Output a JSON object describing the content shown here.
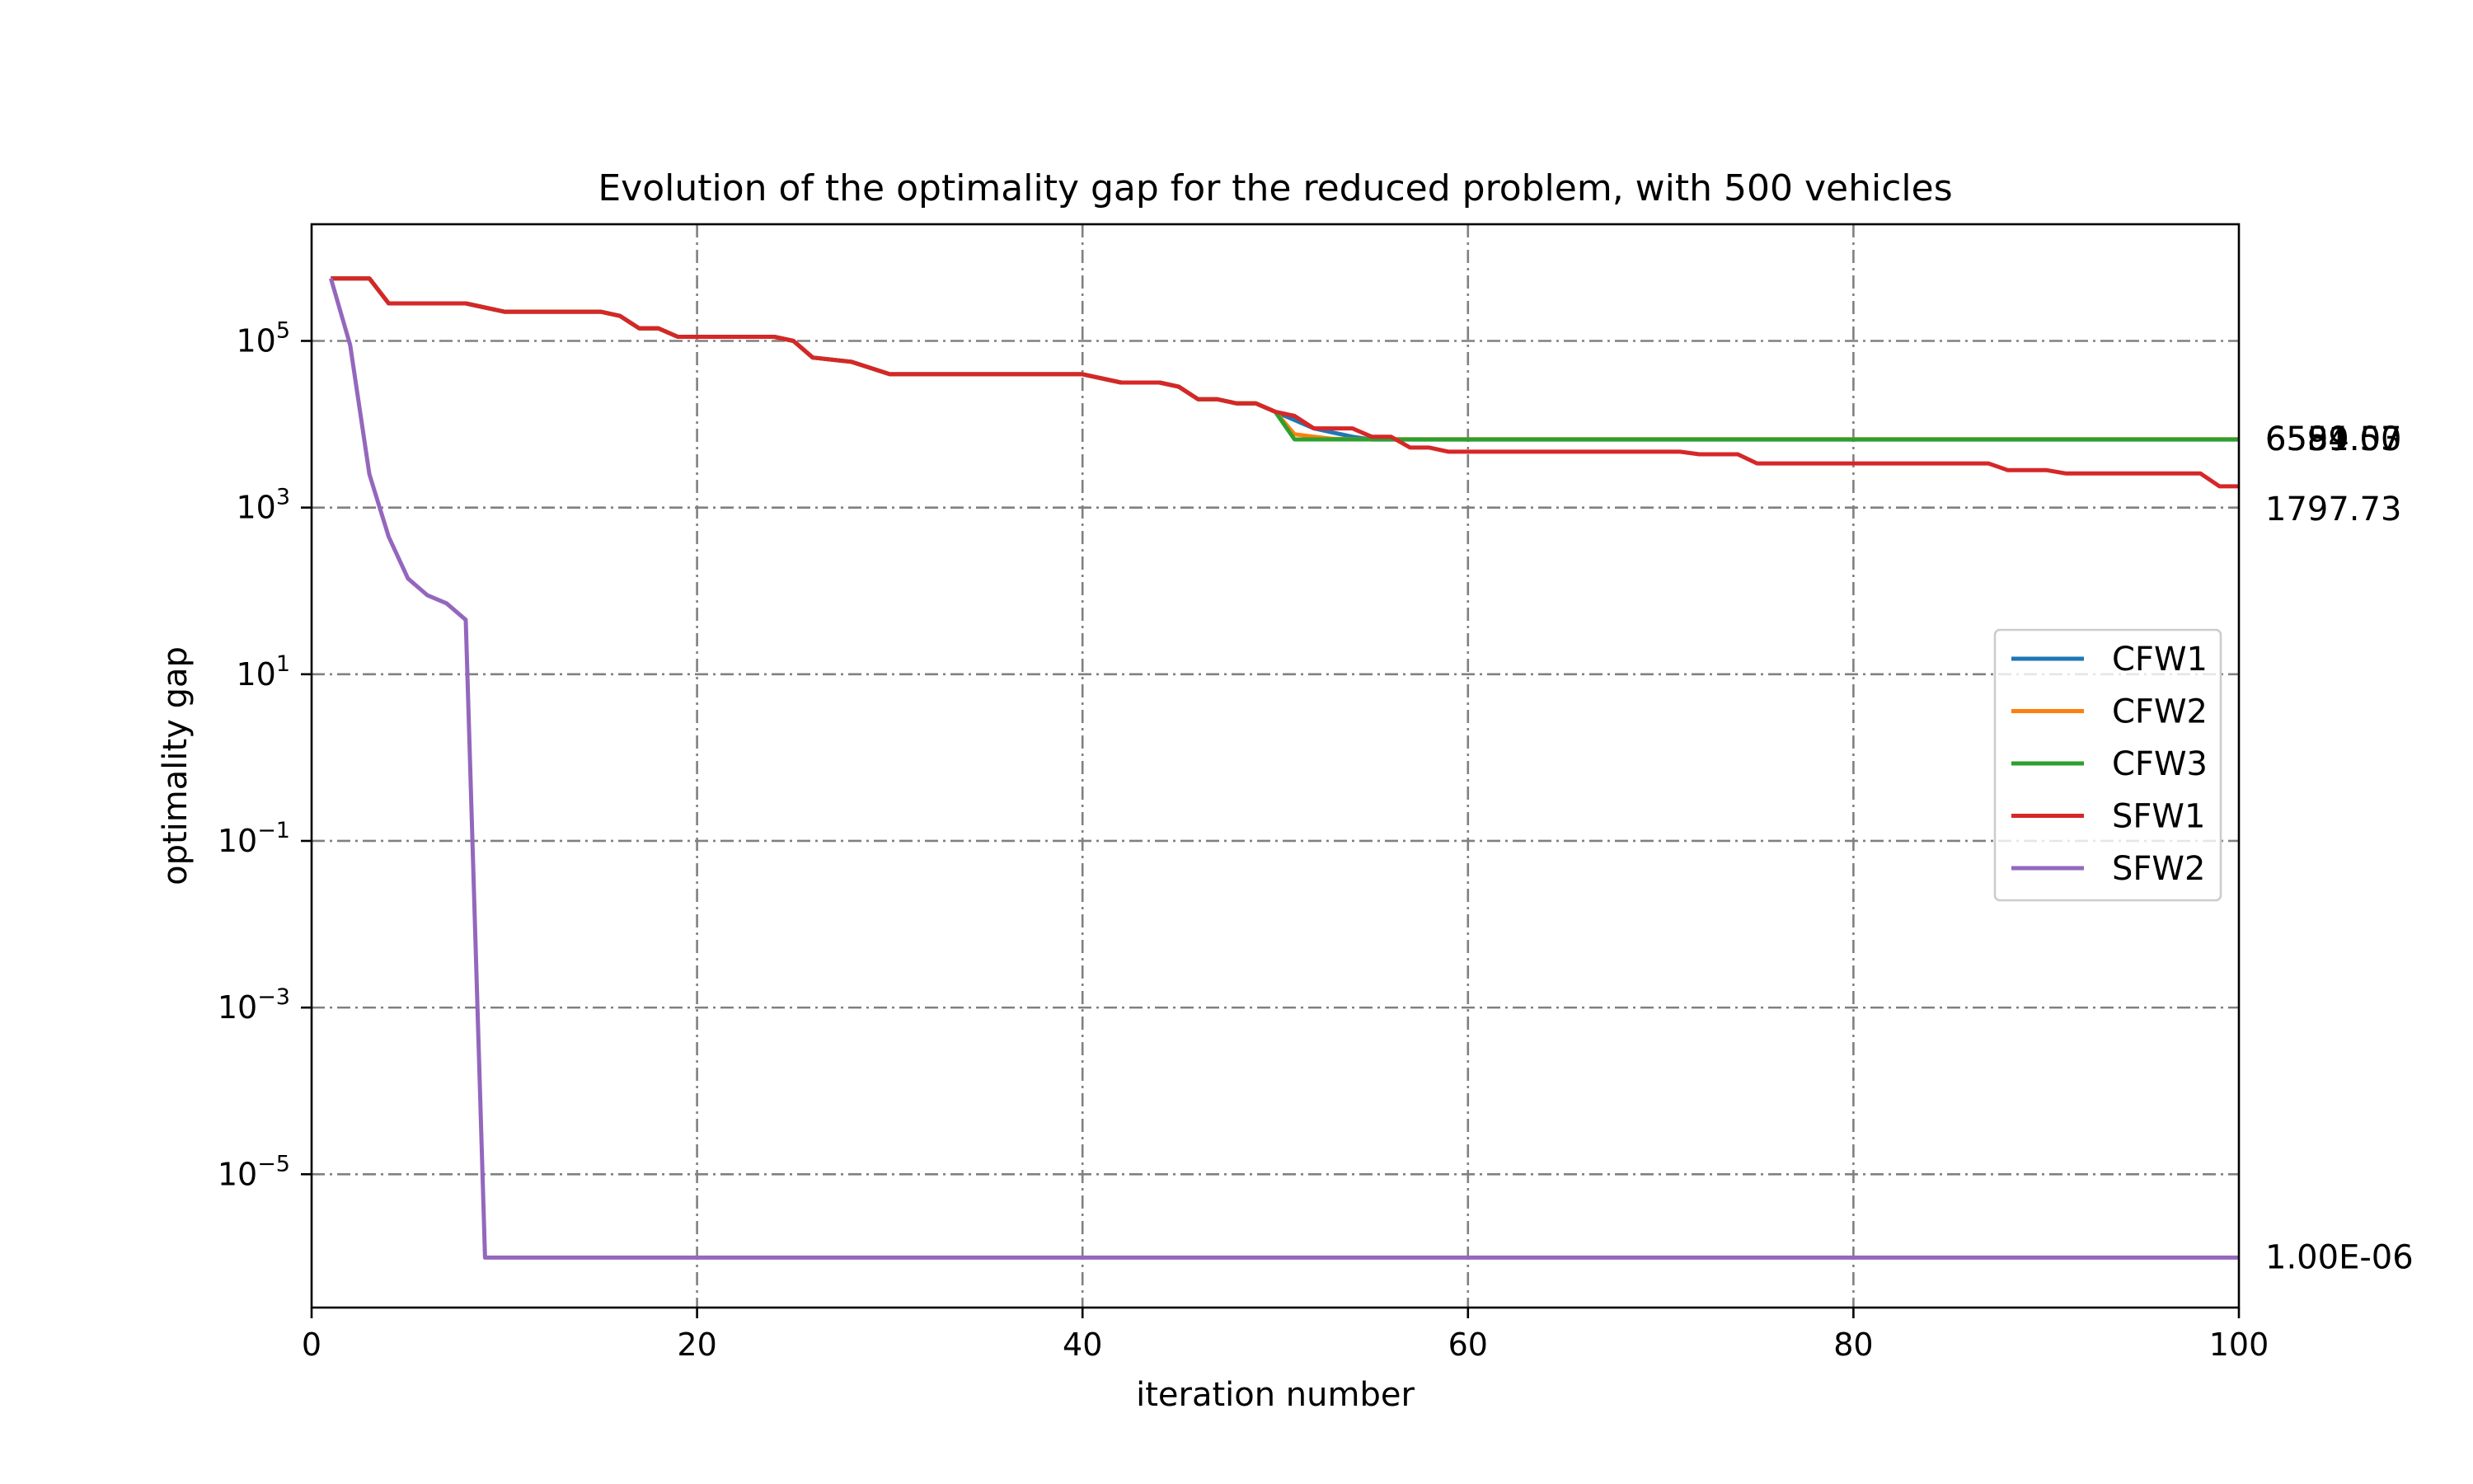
{
  "chart_data": {
    "type": "line",
    "title": "Evolution of the optimality gap for the reduced problem, with 500 vehicles",
    "xlabel": "iteration number",
    "ylabel": "optimality gap",
    "xlim": [
      0,
      100
    ],
    "ylim_log10": [
      -6.6,
      6.4
    ],
    "yscale": "log",
    "grid": true,
    "legend_position": "center-right",
    "x_ticks": [
      0,
      20,
      40,
      60,
      80,
      100
    ],
    "y_ticks": [
      {
        "base": "10",
        "exp": "5",
        "value": 100000
      },
      {
        "base": "10",
        "exp": "3",
        "value": 1000
      },
      {
        "base": "10",
        "exp": "1",
        "value": 10
      },
      {
        "base": "10",
        "exp": "−1",
        "value": 0.1
      },
      {
        "base": "10",
        "exp": "−3",
        "value": 0.001
      },
      {
        "base": "10",
        "exp": "−5",
        "value": 1e-05
      }
    ],
    "series": [
      {
        "name": "CFW1",
        "color": "#1f77b4",
        "points": [
          [
            1,
            562341
          ],
          [
            3,
            562341
          ],
          [
            4,
            281838
          ],
          [
            8,
            281838
          ],
          [
            10,
            223872
          ],
          [
            15,
            223872
          ],
          [
            16,
            199526
          ],
          [
            17,
            141254
          ],
          [
            18,
            141254
          ],
          [
            19,
            112202
          ],
          [
            24,
            112202
          ],
          [
            25,
            100000
          ],
          [
            26,
            63096
          ],
          [
            28,
            56234
          ],
          [
            30,
            39811
          ],
          [
            40,
            39811
          ],
          [
            42,
            31623
          ],
          [
            44,
            31623
          ],
          [
            45,
            28184
          ],
          [
            46,
            19953
          ],
          [
            47,
            19953
          ],
          [
            48,
            17783
          ],
          [
            49,
            17783
          ],
          [
            50,
            14125
          ],
          [
            51,
            11220
          ],
          [
            52,
            8913
          ],
          [
            53,
            7943
          ],
          [
            54,
            7079
          ],
          [
            55,
            6554.07
          ],
          [
            100,
            6554.07
          ]
        ],
        "end_label": "6554.07"
      },
      {
        "name": "CFW2",
        "color": "#ff7f0e",
        "points": [
          [
            1,
            562341
          ],
          [
            3,
            562341
          ],
          [
            4,
            281838
          ],
          [
            8,
            281838
          ],
          [
            10,
            223872
          ],
          [
            15,
            223872
          ],
          [
            16,
            199526
          ],
          [
            17,
            141254
          ],
          [
            18,
            141254
          ],
          [
            19,
            112202
          ],
          [
            24,
            112202
          ],
          [
            25,
            100000
          ],
          [
            26,
            63096
          ],
          [
            28,
            56234
          ],
          [
            30,
            39811
          ],
          [
            40,
            39811
          ],
          [
            42,
            31623
          ],
          [
            44,
            31623
          ],
          [
            45,
            28184
          ],
          [
            46,
            19953
          ],
          [
            47,
            19953
          ],
          [
            48,
            17783
          ],
          [
            49,
            17783
          ],
          [
            50,
            14125
          ],
          [
            51,
            7586
          ],
          [
            52,
            7079
          ],
          [
            53,
            6680
          ],
          [
            54,
            6599.53
          ],
          [
            100,
            6599.53
          ]
        ],
        "end_label": "6599.53"
      },
      {
        "name": "CFW3",
        "color": "#2ca02c",
        "points": [
          [
            1,
            562341
          ],
          [
            3,
            562341
          ],
          [
            4,
            281838
          ],
          [
            8,
            281838
          ],
          [
            10,
            223872
          ],
          [
            15,
            223872
          ],
          [
            16,
            199526
          ],
          [
            17,
            141254
          ],
          [
            18,
            141254
          ],
          [
            19,
            112202
          ],
          [
            24,
            112202
          ],
          [
            25,
            100000
          ],
          [
            26,
            63096
          ],
          [
            28,
            56234
          ],
          [
            30,
            39811
          ],
          [
            40,
            39811
          ],
          [
            42,
            31623
          ],
          [
            44,
            31623
          ],
          [
            45,
            28184
          ],
          [
            46,
            19953
          ],
          [
            47,
            19953
          ],
          [
            48,
            17783
          ],
          [
            49,
            17783
          ],
          [
            50,
            14125
          ],
          [
            51,
            6581.0
          ],
          [
            100,
            6581.0
          ]
        ],
        "end_label": "6581.00"
      },
      {
        "name": "SFW1",
        "color": "#d62728",
        "points": [
          [
            1,
            562341
          ],
          [
            3,
            562341
          ],
          [
            4,
            281838
          ],
          [
            8,
            281838
          ],
          [
            10,
            223872
          ],
          [
            15,
            223872
          ],
          [
            16,
            199526
          ],
          [
            17,
            141254
          ],
          [
            18,
            141254
          ],
          [
            19,
            112202
          ],
          [
            24,
            112202
          ],
          [
            25,
            100000
          ],
          [
            26,
            63096
          ],
          [
            28,
            56234
          ],
          [
            30,
            39811
          ],
          [
            40,
            39811
          ],
          [
            42,
            31623
          ],
          [
            44,
            31623
          ],
          [
            45,
            28184
          ],
          [
            46,
            19953
          ],
          [
            47,
            19953
          ],
          [
            48,
            17783
          ],
          [
            49,
            17783
          ],
          [
            50,
            14125
          ],
          [
            51,
            12589
          ],
          [
            52,
            8913
          ],
          [
            54,
            8913
          ],
          [
            55,
            7079
          ],
          [
            56,
            7079
          ],
          [
            57,
            5248
          ],
          [
            58,
            5248
          ],
          [
            59,
            4677
          ],
          [
            71,
            4677
          ],
          [
            72,
            4365
          ],
          [
            74,
            4365
          ],
          [
            75,
            3388
          ],
          [
            87,
            3388
          ],
          [
            88,
            2818
          ],
          [
            90,
            2818
          ],
          [
            91,
            2570
          ],
          [
            98,
            2570
          ],
          [
            99,
            1797.73
          ],
          [
            100,
            1797.73
          ]
        ],
        "end_label": "1797.73"
      },
      {
        "name": "SFW2",
        "color": "#9467bd",
        "points": [
          [
            1,
            562341
          ],
          [
            2,
            89125
          ],
          [
            3,
            2512
          ],
          [
            4,
            447
          ],
          [
            5,
            141
          ],
          [
            6,
            89
          ],
          [
            7,
            71
          ],
          [
            8,
            45
          ],
          [
            9,
            1e-06
          ],
          [
            100,
            1e-06
          ]
        ],
        "end_label": "1.00E-06"
      }
    ]
  }
}
